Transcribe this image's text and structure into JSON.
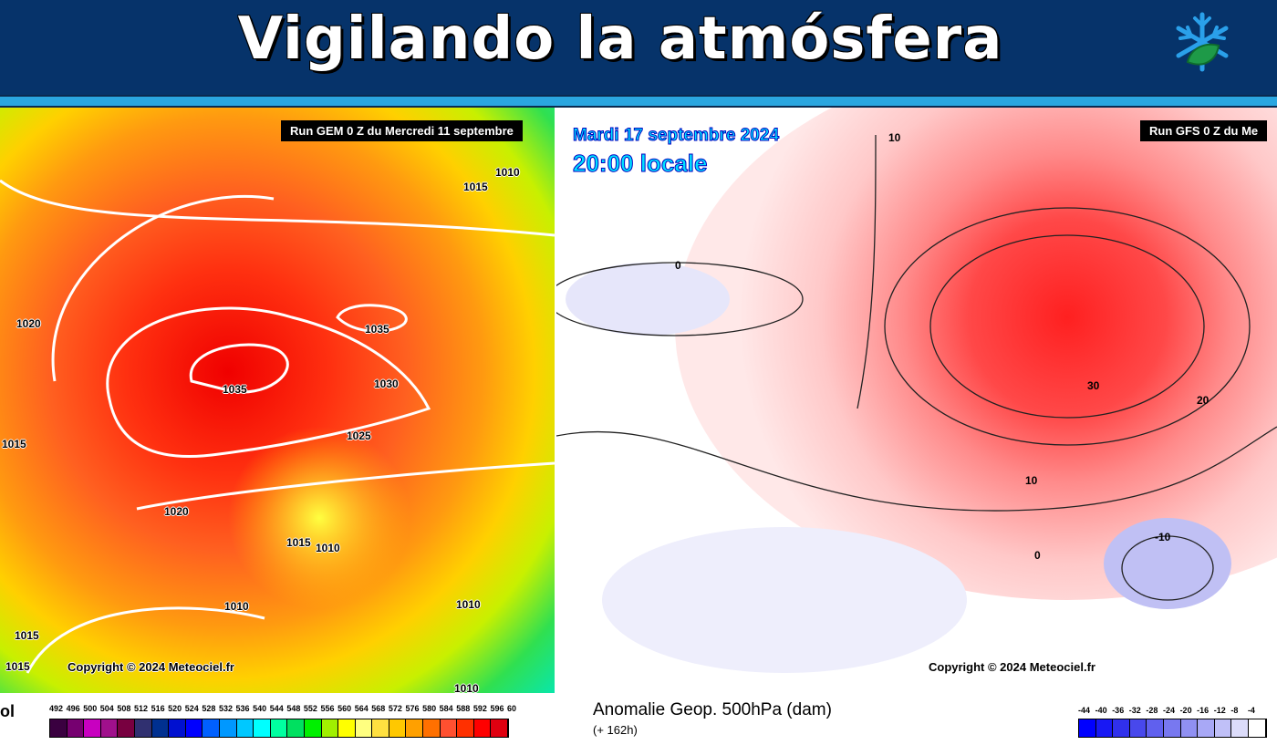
{
  "header": {
    "title": "Vigilando la atmósfera",
    "logo": "snowflake-leaf-logo"
  },
  "left_map": {
    "run": "Run GEM 0 Z du Mercredi 11 septembre",
    "copyright": "Copyright © 2024 Meteociel.fr",
    "labels": [
      "1010",
      "1015",
      "1020",
      "1035",
      "1035",
      "1030",
      "1025",
      "1015",
      "1020",
      "1015",
      "1010",
      "1010",
      "1010",
      "1015",
      "1015",
      "1010"
    ],
    "legend_prefix": "ol",
    "legend_ticks": [
      "492",
      "496",
      "500",
      "504",
      "508",
      "512",
      "516",
      "520",
      "524",
      "528",
      "532",
      "536",
      "540",
      "544",
      "548",
      "552",
      "556",
      "560",
      "564",
      "568",
      "572",
      "576",
      "580",
      "584",
      "588",
      "592",
      "596",
      "60"
    ],
    "legend_colors": [
      "#3a0040",
      "#760070",
      "#c800c0",
      "#a0108c",
      "#780040",
      "#303070",
      "#003090",
      "#0010d0",
      "#0000ff",
      "#0060ff",
      "#0098ff",
      "#00c8ff",
      "#00ffff",
      "#00ffa0",
      "#00e060",
      "#00f000",
      "#a0f000",
      "#ffff00",
      "#ffff80",
      "#ffe040",
      "#ffc800",
      "#ffa000",
      "#ff7000",
      "#ff5030",
      "#ff3000",
      "#ff0000",
      "#e00010"
    ]
  },
  "right_map": {
    "run": "Run GFS 0 Z du Me",
    "date": "Mardi 17 septembre 2024",
    "time": "20:00 locale",
    "copyright": "Copyright © 2024 Meteociel.fr",
    "labels": [
      "10",
      "0",
      "30",
      "20",
      "10",
      "0",
      "-10"
    ],
    "legend_title": "Anomalie Geop. 500hPa (dam)",
    "legend_sub": "(+ 162h)",
    "legend_ticks": [
      "-44",
      "-40",
      "-36",
      "-32",
      "-28",
      "-24",
      "-20",
      "-16",
      "-12",
      "-8",
      "-4"
    ],
    "legend_colors": [
      "#0000ff",
      "#1818f4",
      "#3030ec",
      "#4848ec",
      "#6060ee",
      "#7878f0",
      "#9090f2",
      "#a8a8f6",
      "#c0c0f8",
      "#dcdcfa",
      "#ffffff"
    ]
  }
}
